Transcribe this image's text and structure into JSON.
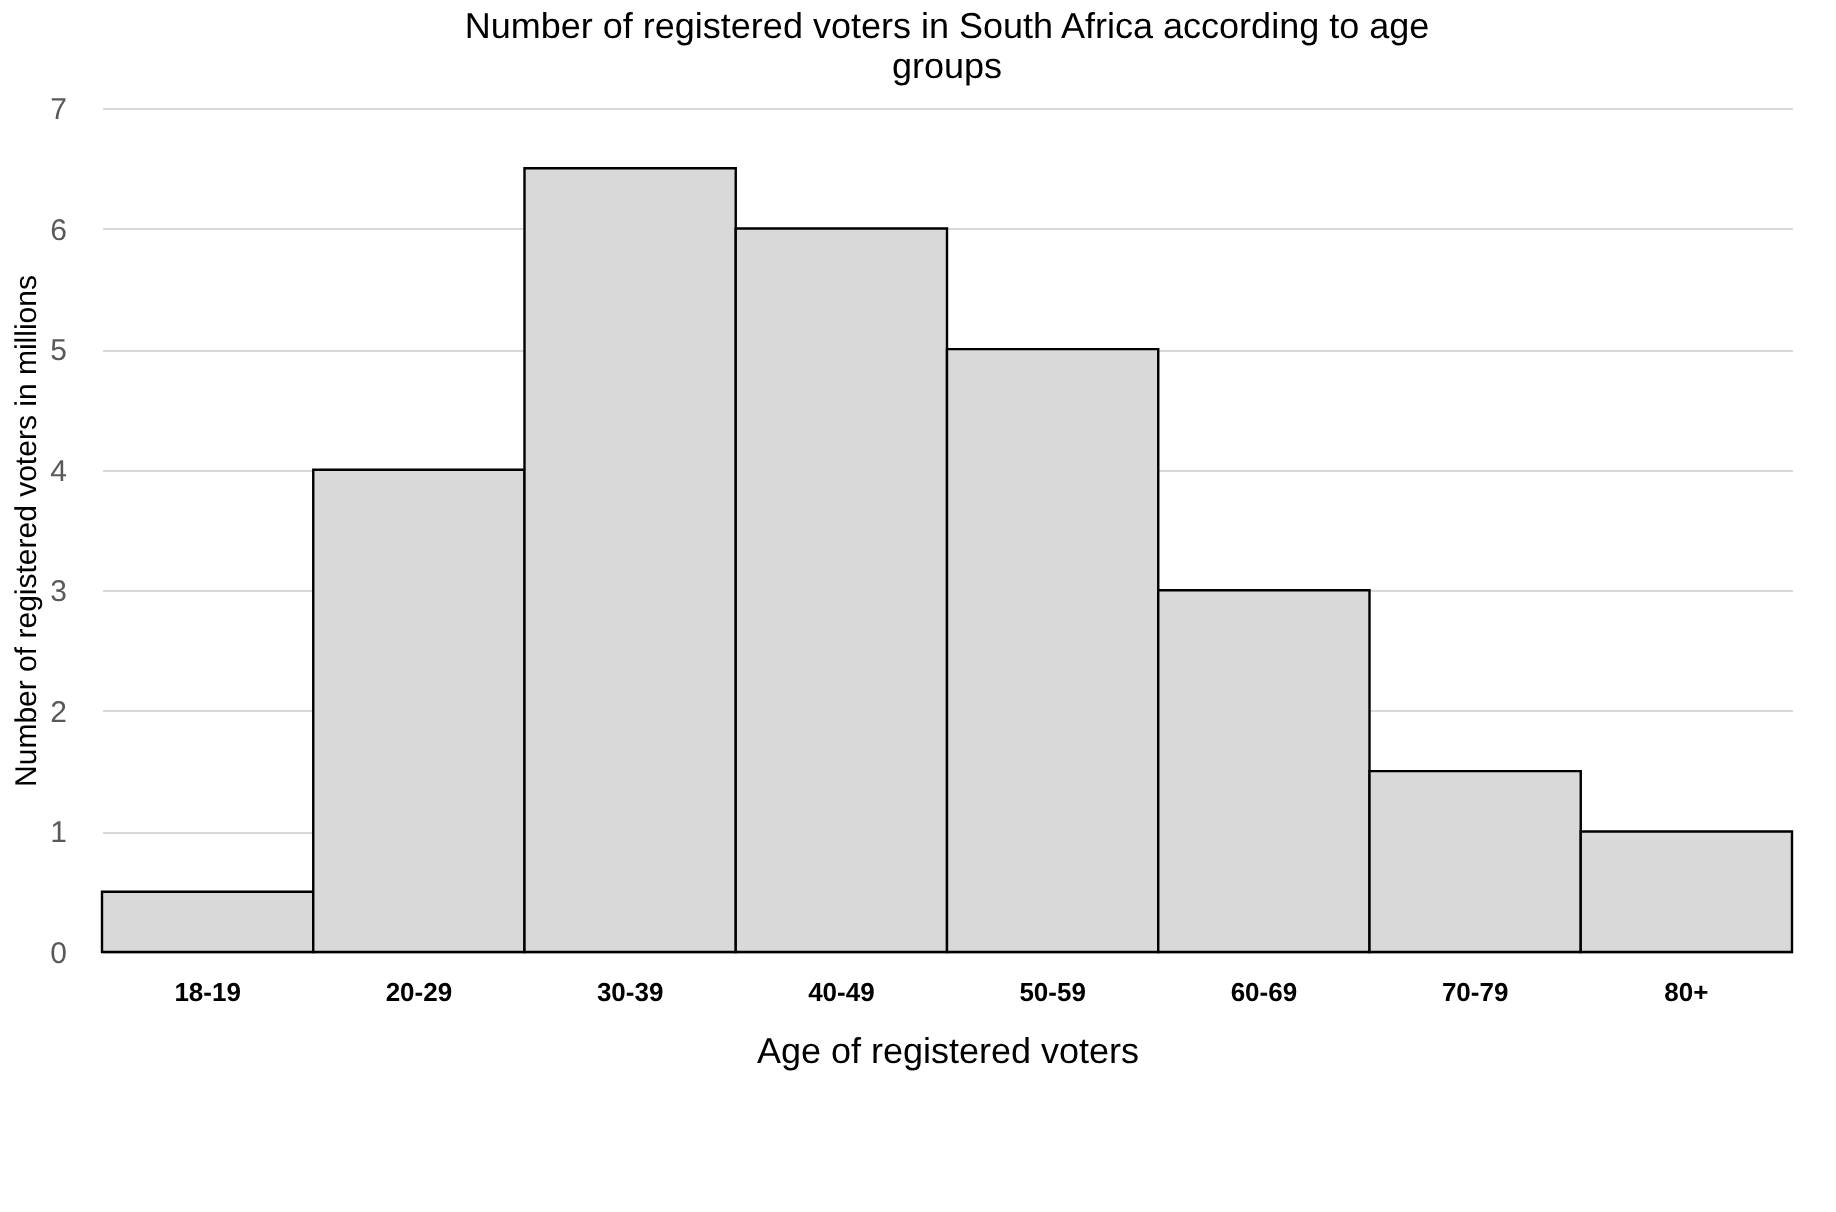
{
  "chart_data": {
    "type": "bar",
    "title": "Number of registered voters in South Africa according to age groups",
    "xlabel": "Age of registered voters",
    "ylabel": "Number of registered voters in millions",
    "categories": [
      "18-19",
      "20-29",
      "30-39",
      "40-49",
      "50-59",
      "60-69",
      "70-79",
      "80+"
    ],
    "values": [
      0.5,
      4,
      6.5,
      6,
      5,
      3,
      1.5,
      1
    ],
    "color": "#d9d9d9",
    "ylim": [
      0,
      7
    ],
    "yticks": [
      0,
      1,
      2,
      3,
      4,
      5,
      6,
      7
    ],
    "grid": "y"
  }
}
